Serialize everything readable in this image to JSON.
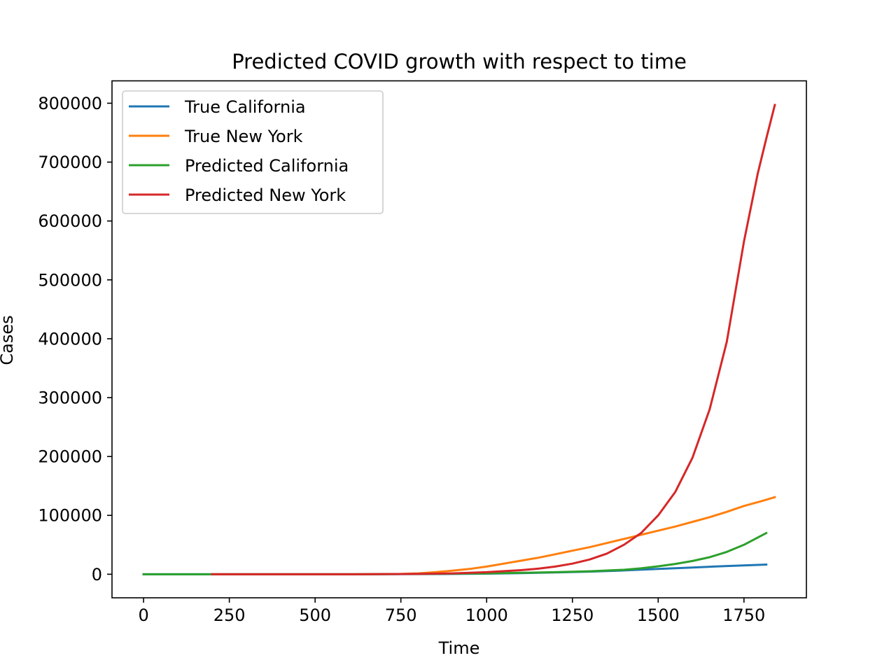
{
  "chart_data": {
    "type": "line",
    "title": "Predicted COVID growth with respect to time",
    "xlabel": "Time",
    "ylabel": "Cases",
    "xlim": [
      -92,
      1932
    ],
    "ylim": [
      -40000,
      838000
    ],
    "x_ticks": [
      0,
      250,
      500,
      750,
      1000,
      1250,
      1500,
      1750
    ],
    "x_tick_labels": [
      "0",
      "250",
      "500",
      "750",
      "1000",
      "1250",
      "1500",
      "1750"
    ],
    "y_ticks": [
      0,
      100000,
      200000,
      300000,
      400000,
      500000,
      600000,
      700000,
      800000
    ],
    "y_tick_labels": [
      "0",
      "100000",
      "200000",
      "300000",
      "400000",
      "500000",
      "600000",
      "700000",
      "800000"
    ],
    "grid": false,
    "legend_position": "top-left",
    "series": [
      {
        "name": "True California",
        "color": "#1f77b4",
        "x": [
          0,
          200,
          400,
          600,
          800,
          900,
          1000,
          1100,
          1200,
          1300,
          1400,
          1500,
          1600,
          1700,
          1815
        ],
        "y": [
          0,
          0,
          0,
          0,
          300,
          600,
          1000,
          1800,
          3000,
          4500,
          6500,
          9000,
          11500,
          14000,
          16500
        ]
      },
      {
        "name": "True New York",
        "color": "#ff7f0e",
        "x": [
          200,
          400,
          600,
          750,
          800,
          850,
          900,
          950,
          1000,
          1050,
          1100,
          1150,
          1200,
          1250,
          1300,
          1350,
          1400,
          1450,
          1500,
          1550,
          1600,
          1650,
          1700,
          1750,
          1800,
          1840
        ],
        "y": [
          0,
          0,
          0,
          500,
          1500,
          3500,
          6000,
          9000,
          13000,
          18000,
          23000,
          28000,
          34000,
          40000,
          46000,
          53000,
          60000,
          67000,
          74000,
          81000,
          89000,
          97000,
          106000,
          116000,
          124000,
          131000
        ]
      },
      {
        "name": "Predicted California",
        "color": "#2ca02c",
        "x": [
          0,
          200,
          400,
          600,
          800,
          900,
          1000,
          1100,
          1200,
          1300,
          1400,
          1450,
          1500,
          1550,
          1600,
          1650,
          1700,
          1750,
          1815
        ],
        "y": [
          0,
          0,
          0,
          0,
          500,
          1000,
          1500,
          2500,
          3500,
          5000,
          7500,
          10000,
          13500,
          17500,
          22500,
          29000,
          38000,
          50000,
          70000
        ]
      },
      {
        "name": "Predicted New York",
        "color": "#d62728",
        "x": [
          200,
          400,
          600,
          800,
          900,
          1000,
          1100,
          1150,
          1200,
          1250,
          1300,
          1350,
          1400,
          1450,
          1500,
          1550,
          1600,
          1650,
          1700,
          1750,
          1790,
          1815,
          1840
        ],
        "y": [
          0,
          0,
          0,
          500,
          1500,
          3500,
          7000,
          9500,
          13000,
          18000,
          25000,
          35000,
          50000,
          70000,
          100000,
          140000,
          198000,
          280000,
          395000,
          565000,
          680000,
          740000,
          797000
        ]
      }
    ]
  }
}
